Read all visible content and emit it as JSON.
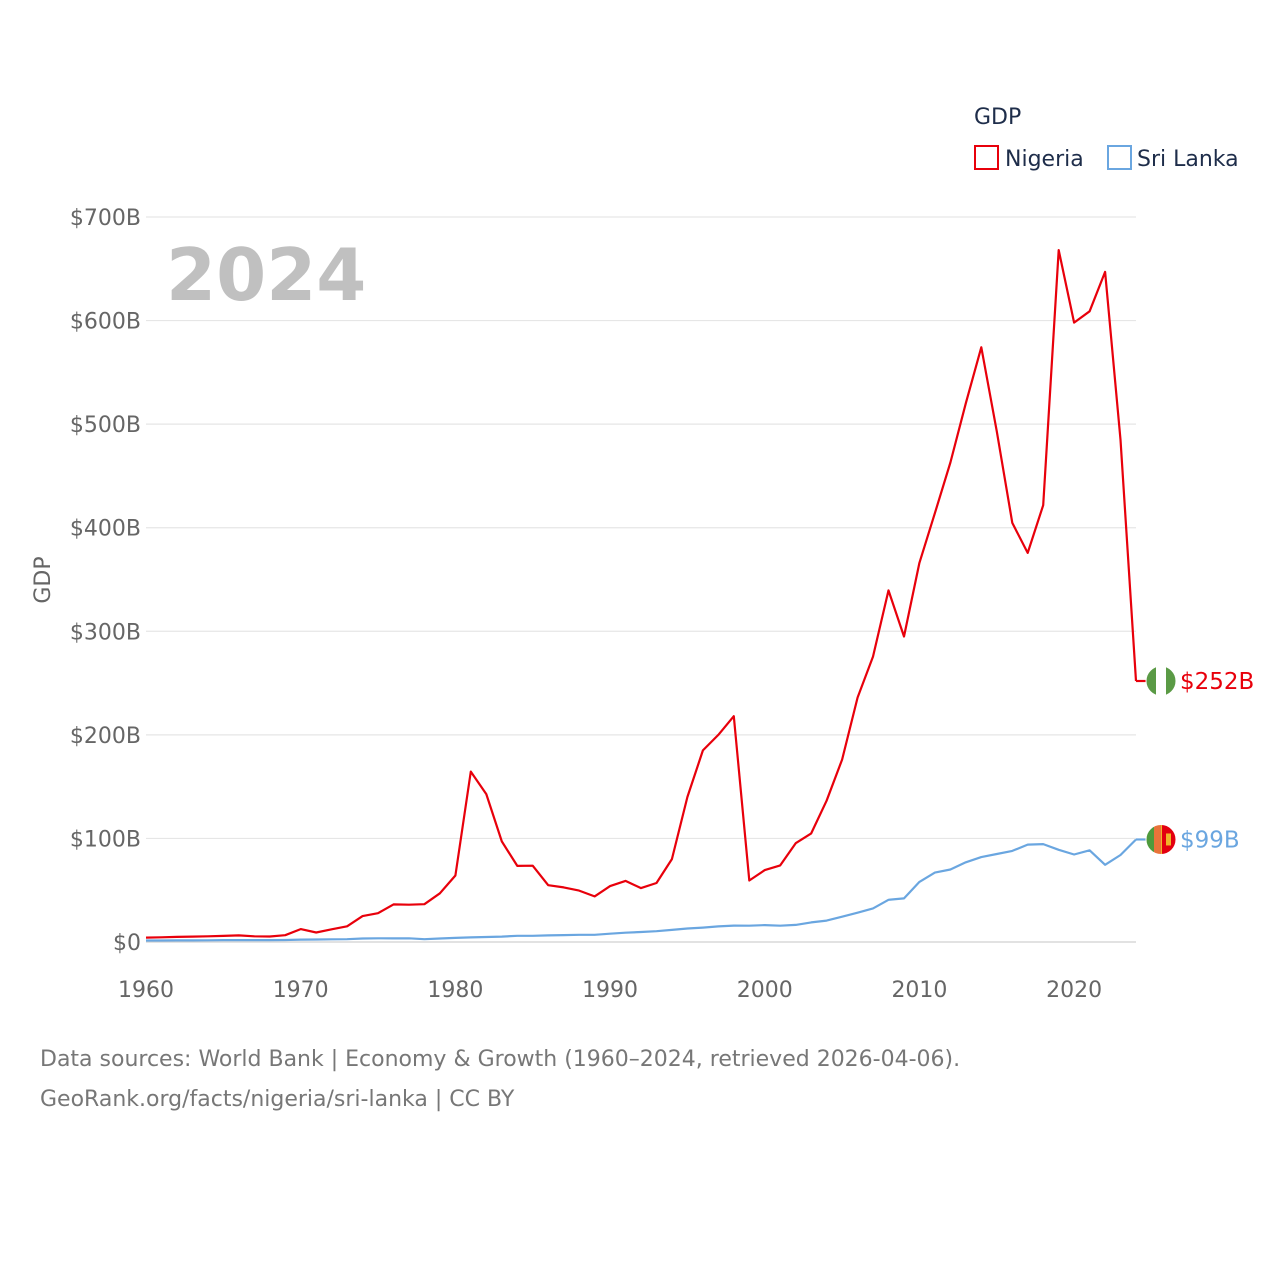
{
  "chart_data": {
    "type": "line",
    "title": "",
    "current_year": "2024",
    "ylabel": "GDP",
    "xlabel": "",
    "xlim": [
      1960,
      2024
    ],
    "ylim": [
      0,
      700
    ],
    "unit": "billion USD",
    "x_ticks": [
      {
        "value": 1960,
        "label": "1960"
      },
      {
        "value": 1970,
        "label": "1970"
      },
      {
        "value": 1980,
        "label": "1980"
      },
      {
        "value": 1990,
        "label": "1990"
      },
      {
        "value": 2000,
        "label": "2000"
      },
      {
        "value": 2010,
        "label": "2010"
      },
      {
        "value": 2020,
        "label": "2020"
      }
    ],
    "y_ticks": [
      {
        "value": 0,
        "label": "$0"
      },
      {
        "value": 100,
        "label": "$100B"
      },
      {
        "value": 200,
        "label": "$200B"
      },
      {
        "value": 300,
        "label": "$300B"
      },
      {
        "value": 400,
        "label": "$400B"
      },
      {
        "value": 500,
        "label": "$500B"
      },
      {
        "value": 600,
        "label": "$600B"
      },
      {
        "value": 700,
        "label": "$700B"
      }
    ],
    "legend": {
      "title": "GDP",
      "position": "top-right"
    },
    "years": [
      1960,
      1961,
      1962,
      1963,
      1964,
      1965,
      1966,
      1967,
      1968,
      1969,
      1970,
      1971,
      1972,
      1973,
      1974,
      1975,
      1976,
      1977,
      1978,
      1979,
      1980,
      1981,
      1982,
      1983,
      1984,
      1985,
      1986,
      1987,
      1988,
      1989,
      1990,
      1991,
      1992,
      1993,
      1994,
      1995,
      1996,
      1997,
      1998,
      1999,
      2000,
      2001,
      2002,
      2003,
      2004,
      2005,
      2006,
      2007,
      2008,
      2009,
      2010,
      2011,
      2012,
      2013,
      2014,
      2015,
      2016,
      2017,
      2018,
      2019,
      2020,
      2021,
      2022,
      2023,
      2024
    ],
    "series": [
      {
        "name": "Nigeria",
        "color": "#e8000b",
        "end_label": "$252B",
        "values": [
          4.2,
          4.5,
          4.9,
          5.2,
          5.5,
          5.9,
          6.4,
          5.5,
          5.3,
          6.6,
          12.5,
          9.2,
          12.3,
          15.2,
          25.0,
          27.8,
          36.3,
          36.0,
          36.5,
          47.0,
          64.2,
          164.5,
          142.8,
          97.1,
          73.5,
          73.7,
          54.8,
          52.7,
          49.6,
          44.0,
          54.0,
          59.0,
          52.0,
          57.0,
          80.0,
          140.0,
          185.0,
          200.0,
          218.0,
          59.4,
          69.4,
          74.0,
          95.4,
          104.9,
          136.4,
          176.1,
          236.1,
          275.6,
          339.5,
          295.0,
          366.0,
          414.1,
          463.0,
          520.1,
          574.2,
          493.0,
          404.6,
          375.7,
          421.7,
          668.0,
          598.0,
          609.0,
          647.0,
          485.0,
          252.0
        ]
      },
      {
        "name": "Sri Lanka",
        "color": "#6aa6e0",
        "end_label": "$99B",
        "values": [
          1.4,
          1.4,
          1.5,
          1.5,
          1.6,
          1.8,
          1.8,
          1.8,
          1.8,
          1.9,
          2.3,
          2.4,
          2.6,
          2.7,
          3.4,
          3.6,
          3.5,
          3.6,
          2.7,
          3.4,
          4.0,
          4.4,
          4.8,
          5.2,
          6.0,
          6.0,
          6.4,
          6.7,
          7.0,
          7.0,
          8.0,
          9.0,
          9.7,
          10.4,
          11.7,
          13.0,
          13.9,
          15.1,
          15.8,
          15.7,
          16.3,
          15.7,
          16.5,
          18.9,
          20.7,
          24.4,
          28.3,
          32.4,
          40.7,
          42.1,
          58.0,
          67.0,
          70.0,
          77.0,
          82.0,
          85.0,
          88.0,
          94.0,
          94.5,
          89.0,
          84.5,
          88.5,
          74.5,
          84.0,
          99.0
        ]
      }
    ]
  },
  "footer": {
    "line1": "Data sources: World Bank | Economy & Growth (1960–2024, retrieved 2026-04-06).",
    "line2": "GeoRank.org/facts/nigeria/sri-lanka | CC BY"
  }
}
